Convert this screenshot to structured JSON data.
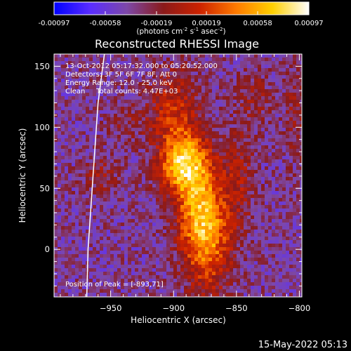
{
  "chart_data": {
    "type": "heatmap",
    "title": "Reconstructed RHESSI Image",
    "xlabel": "Heliocentric X (arcsec)",
    "ylabel": "Heliocentric Y (arcsec)",
    "xlim": [
      -995,
      -798
    ],
    "ylim": [
      -39,
      160
    ],
    "x_ticks": [
      -950,
      -900,
      -850,
      -800
    ],
    "y_ticks": [
      0,
      50,
      100,
      150
    ],
    "colorbar": {
      "range": [
        -0.00097,
        0.00097
      ],
      "tick_values": [
        -0.00097,
        -0.00058,
        -0.00019,
        0.00019,
        0.00058,
        0.00097
      ],
      "tick_labels": [
        "-0.00097",
        "-0.00058",
        "-0.00019",
        "0.00019",
        "0.00058",
        "0.00097"
      ],
      "units_prefix": "(photons cm",
      "units_mid": " s",
      "units_tail": " asec",
      "units_exp1": "-2",
      "units_exp2": "-1",
      "units_exp3": "-2",
      "units_close": ")",
      "colormap": [
        "#0000ff",
        "#5a2dff",
        "#7d48a8",
        "#8a1a1a",
        "#cc2200",
        "#ff7a00",
        "#ffd000",
        "#ffffff"
      ]
    },
    "annotations": [
      "13-Oct-2012 05:17:32.000 to 05:20:52.000",
      "Detectors: 3F 5F 6F 7F 8F, Att 0",
      "Energy Range: 12.0 - 25.0 keV",
      "Clean     Total counts: 4.47E+03"
    ],
    "peak_label": "Position of Peak = [-893,71]",
    "peak": {
      "x": -893,
      "y": 71
    },
    "sources": [
      {
        "x": -893,
        "y": 71,
        "sx": 13,
        "sy": 17,
        "amp": 0.00097
      },
      {
        "x": -880,
        "y": 35,
        "sx": 13,
        "sy": 30,
        "amp": 0.0007
      },
      {
        "x": -872,
        "y": 5,
        "sx": 13,
        "sy": 30,
        "amp": 0.0006
      },
      {
        "x": -900,
        "y": 115,
        "sx": 14,
        "sy": 22,
        "amp": 0.00048
      },
      {
        "x": -848,
        "y": 60,
        "sx": 9,
        "sy": 30,
        "amp": 0.0003
      },
      {
        "x": -835,
        "y": 125,
        "sx": 10,
        "sy": 14,
        "amp": 0.00025
      },
      {
        "x": -958,
        "y": 60,
        "sx": 11,
        "sy": 12,
        "amp": 0.00025
      },
      {
        "x": -937,
        "y": 105,
        "sx": 10,
        "sy": 12,
        "amp": 0.00018
      },
      {
        "x": -803,
        "y": 115,
        "sx": 6,
        "sy": 30,
        "amp": 0.00025
      }
    ],
    "limb_curve": [
      {
        "x": -955,
        "y": 160
      },
      {
        "x": -960,
        "y": 120
      },
      {
        "x": -962,
        "y": 90
      },
      {
        "x": -964,
        "y": 60
      },
      {
        "x": -966,
        "y": 30
      },
      {
        "x": -968,
        "y": 0
      },
      {
        "x": -969,
        "y": -39
      }
    ]
  },
  "footer_timestamp": "15-May-2022 05:13"
}
